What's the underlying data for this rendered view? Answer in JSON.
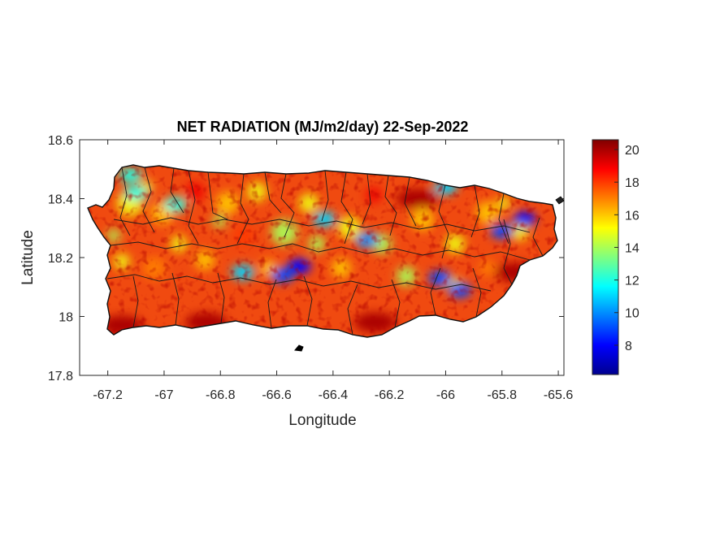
{
  "chart_data": {
    "type": "heatmap",
    "title": "NET RADIATION (MJ/m2/day) 22-Sep-2022",
    "xlabel": "Longitude",
    "ylabel": "Latitude",
    "xlim": [
      -67.3,
      -65.58
    ],
    "ylim": [
      17.8,
      18.6
    ],
    "x_ticks": [
      -67.2,
      -67,
      -66.8,
      -66.6,
      -66.4,
      -66.2,
      -66,
      -65.8,
      -65.6
    ],
    "x_tick_labels": [
      "-67.2",
      "-67",
      "-66.8",
      "-66.6",
      "-66.4",
      "-66.2",
      "-66",
      "-65.8",
      "-65.6"
    ],
    "y_ticks": [
      17.8,
      18,
      18.2,
      18.4,
      18.6
    ],
    "y_tick_labels": [
      "17.8",
      "18",
      "18.2",
      "18.4",
      "18.6"
    ],
    "colorbar": {
      "colormap": "jet",
      "range": [
        6.2,
        20.6
      ],
      "ticks": [
        8,
        10,
        12,
        14,
        16,
        18,
        20
      ],
      "tick_labels": [
        "8",
        "10",
        "12",
        "14",
        "16",
        "18",
        "20"
      ]
    },
    "low_value_zones": [
      {
        "lon": -66.58,
        "lat": 18.14,
        "value": 9
      },
      {
        "lon": -66.52,
        "lat": 18.17,
        "value": 8
      },
      {
        "lon": -66.72,
        "lat": 18.15,
        "value": 11
      },
      {
        "lon": -66.43,
        "lat": 18.33,
        "value": 11
      },
      {
        "lon": -66.28,
        "lat": 18.26,
        "value": 10
      },
      {
        "lon": -66.02,
        "lat": 18.13,
        "value": 9
      },
      {
        "lon": -65.95,
        "lat": 18.09,
        "value": 9
      },
      {
        "lon": -65.8,
        "lat": 18.29,
        "value": 9
      },
      {
        "lon": -65.72,
        "lat": 18.33,
        "value": 8
      },
      {
        "lon": -67.1,
        "lat": 18.42,
        "value": 12
      },
      {
        "lon": -66.96,
        "lat": 18.38,
        "value": 12
      },
      {
        "lon": -66.0,
        "lat": 18.44,
        "value": 11
      },
      {
        "lon": -67.12,
        "lat": 18.48,
        "value": 12
      }
    ],
    "high_value_zones": [
      {
        "lon": -67.15,
        "lat": 17.97,
        "value": 20
      },
      {
        "lon": -66.85,
        "lat": 17.98,
        "value": 20
      },
      {
        "lon": -66.25,
        "lat": 17.98,
        "value": 20
      },
      {
        "lon": -66.1,
        "lat": 18.4,
        "value": 20
      },
      {
        "lon": -65.75,
        "lat": 18.15,
        "value": 20
      }
    ],
    "grid": false,
    "colorbar_position": "right"
  }
}
